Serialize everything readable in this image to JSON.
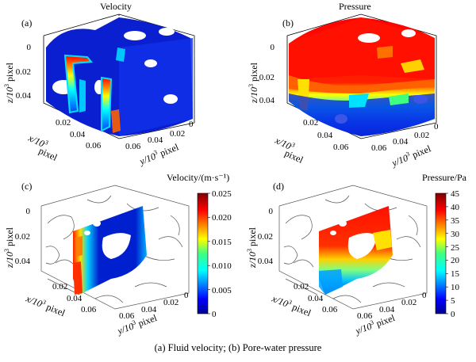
{
  "figure": {
    "caption": "(a) Fluid velocity; (b) Pore-water pressure",
    "axis_labels": {
      "z": "z/10",
      "x": "x/10",
      "y": "y/10",
      "exponent": "3",
      "unit": "pixel"
    },
    "panels": [
      {
        "id": "a",
        "label": "(a)",
        "title": "Velocity",
        "z_ticks": [
          "0",
          "0.02",
          "0.04"
        ],
        "x_ticks": [
          "0.02",
          "0.04",
          "0.06"
        ],
        "y_ticks": [
          "0",
          "0.02",
          "0.04",
          "0.06"
        ]
      },
      {
        "id": "b",
        "label": "(b)",
        "title": "Pressure",
        "z_ticks": [
          "0",
          "0.02",
          "0.04"
        ],
        "x_ticks": [
          "0.02",
          "0.04",
          "0.06"
        ],
        "y_ticks": [
          "0",
          "0.02",
          "0.04",
          "0.06"
        ]
      },
      {
        "id": "c",
        "label": "(c)",
        "title": "Velocity/(m·s⁻¹)",
        "z_ticks": [
          "0",
          "0.02",
          "0.04"
        ],
        "x_ticks": [
          "0.02",
          "0.04",
          "0.06"
        ],
        "y_ticks": [
          "0",
          "0.02",
          "0.04",
          "0.06"
        ],
        "colorbar": {
          "min": 0,
          "max": 0.025,
          "ticks": [
            "0.025",
            "0.020",
            "0.015",
            "0.010",
            "0.005",
            "0"
          ]
        }
      },
      {
        "id": "d",
        "label": "(d)",
        "title": "Pressure/Pa",
        "z_ticks": [
          "0",
          "0.02",
          "0.04"
        ],
        "x_ticks": [
          "0.02",
          "0.04",
          "0.06"
        ],
        "y_ticks": [
          "0",
          "0.02",
          "0.04",
          "0.06"
        ],
        "colorbar": {
          "min": 0,
          "max": 45,
          "ticks": [
            "45",
            "40",
            "35",
            "30",
            "25",
            "20",
            "15",
            "10",
            "5",
            "0"
          ]
        }
      }
    ],
    "colors": {
      "jet_dark_blue": "#00008f",
      "jet_blue": "#0040ff",
      "jet_cyan": "#00ffff",
      "jet_green": "#40ff80",
      "jet_yellow": "#ffff00",
      "jet_orange": "#ff8000",
      "jet_red": "#ff0000",
      "jet_dark_red": "#800000"
    }
  }
}
